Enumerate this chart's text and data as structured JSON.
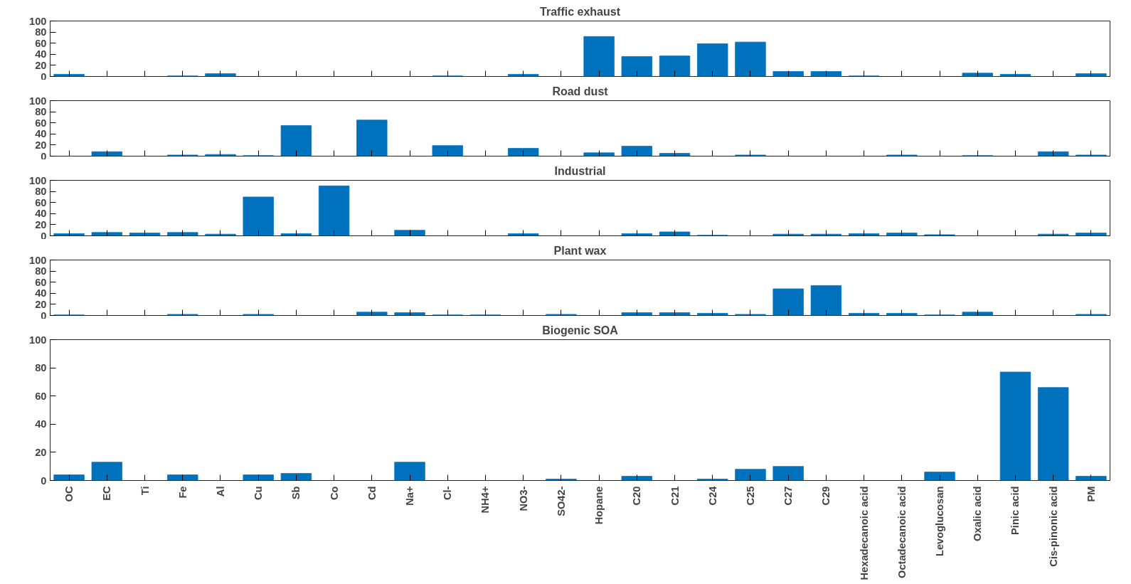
{
  "chart_data": [
    {
      "type": "bar",
      "title": "Traffic exhaust",
      "categories": [
        null,
        null,
        null,
        null,
        null,
        null,
        null,
        null,
        null,
        null,
        null,
        null,
        null,
        null,
        null,
        null,
        null,
        null,
        null,
        null,
        null,
        null,
        null,
        null,
        null,
        null,
        null,
        null
      ],
      "values": [
        4,
        0,
        0,
        1,
        5,
        0,
        0,
        0,
        0,
        0,
        1,
        0,
        4,
        0,
        72,
        36,
        37,
        59,
        62,
        9,
        9,
        1,
        0,
        0,
        6,
        4,
        0,
        5
      ],
      "color": "#0072bd",
      "ylim": [
        0,
        100
      ],
      "yticks": [
        0,
        20,
        40,
        60,
        80,
        100
      ],
      "grid": false,
      "tick_labels": "y"
    },
    {
      "type": "bar",
      "title": "Road dust",
      "categories": [
        null,
        null,
        null,
        null,
        null,
        null,
        null,
        null,
        null,
        null,
        null,
        null,
        null,
        null,
        null,
        null,
        null,
        null,
        null,
        null,
        null,
        null,
        null,
        null,
        null,
        null,
        null,
        null
      ],
      "values": [
        0,
        8,
        0,
        2,
        3,
        1,
        55,
        0,
        65,
        0,
        19,
        0,
        14,
        0,
        6,
        18,
        5,
        0,
        2,
        0,
        0,
        0,
        2,
        0,
        1,
        0,
        8,
        2
      ],
      "color": "#0072bd",
      "ylim": [
        0,
        100
      ],
      "yticks": [
        0,
        20,
        40,
        60,
        80,
        100
      ],
      "grid": false,
      "tick_labels": "y"
    },
    {
      "type": "bar",
      "title": "Industrial",
      "categories": [
        null,
        null,
        null,
        null,
        null,
        null,
        null,
        null,
        null,
        null,
        null,
        null,
        null,
        null,
        null,
        null,
        null,
        null,
        null,
        null,
        null,
        null,
        null,
        null,
        null,
        null,
        null,
        null
      ],
      "values": [
        4,
        6,
        5,
        6,
        3,
        70,
        4,
        90,
        0,
        10,
        0,
        0,
        4,
        0,
        0,
        4,
        7,
        1,
        0,
        3,
        3,
        4,
        5,
        2,
        0,
        0,
        3,
        5
      ],
      "color": "#0072bd",
      "ylim": [
        0,
        100
      ],
      "yticks": [
        0,
        20,
        40,
        60,
        80,
        100
      ],
      "grid": false,
      "tick_labels": "y"
    },
    {
      "type": "bar",
      "title": "Plant wax",
      "categories": [
        null,
        null,
        null,
        null,
        null,
        null,
        null,
        null,
        null,
        null,
        null,
        null,
        null,
        null,
        null,
        null,
        null,
        null,
        null,
        null,
        null,
        null,
        null,
        null,
        null,
        null,
        null,
        null
      ],
      "values": [
        1,
        0,
        0,
        2,
        0,
        2,
        0,
        0,
        6,
        5,
        1,
        1,
        0,
        2,
        0,
        5,
        5,
        4,
        2,
        48,
        54,
        4,
        4,
        1,
        6,
        0,
        0,
        2
      ],
      "color": "#0072bd",
      "ylim": [
        0,
        100
      ],
      "yticks": [
        0,
        20,
        40,
        60,
        80,
        100
      ],
      "grid": false,
      "tick_labels": "y"
    },
    {
      "type": "bar",
      "title": "Biogenic SOA",
      "categories": [
        "OC",
        "EC",
        "Ti",
        "Fe",
        "Al",
        "Cu",
        "Sb",
        "Co",
        "Cd",
        "Na+",
        "Cl-",
        "NH4+",
        "NO3-",
        "SO42-",
        "Hopane",
        "C20",
        "C21",
        "C24",
        "C25",
        "C27",
        "C29",
        "Hexadecanoic acid",
        "Octadecanoic acid",
        "Levoglucosan",
        "Oxalic acid",
        "Pinic acid",
        "Cis-pinonic acid",
        "PM"
      ],
      "values": [
        4,
        13,
        0,
        4,
        0,
        4,
        5,
        0,
        0,
        13,
        0,
        0,
        0,
        1,
        0,
        3,
        0,
        1,
        8,
        10,
        0,
        0,
        0,
        6,
        0,
        77,
        66,
        3
      ],
      "color": "#0072bd",
      "ylim": [
        0,
        100
      ],
      "yticks": [
        0,
        20,
        40,
        60,
        80,
        100
      ],
      "grid": false
    }
  ]
}
